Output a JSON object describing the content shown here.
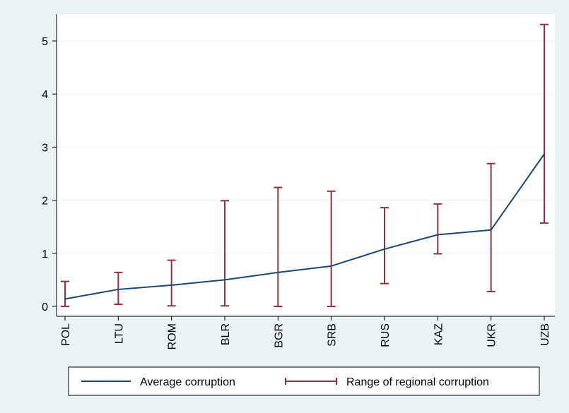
{
  "chart_data": {
    "type": "line",
    "categories": [
      "POL",
      "LTU",
      "ROM",
      "BLR",
      "BGR",
      "SRB",
      "RUS",
      "KAZ",
      "UKR",
      "UZB"
    ],
    "series": [
      {
        "name": "Average corruption",
        "kind": "line",
        "values": [
          0.14,
          0.32,
          0.4,
          0.5,
          0.64,
          0.76,
          1.08,
          1.35,
          1.44,
          2.87
        ]
      },
      {
        "name": "Range of regional corruption",
        "kind": "range",
        "low": [
          0.0,
          0.04,
          0.01,
          0.01,
          0.0,
          0.0,
          0.43,
          0.99,
          0.28,
          1.57
        ],
        "high": [
          0.47,
          0.64,
          0.87,
          1.99,
          2.24,
          2.17,
          1.86,
          1.93,
          2.69,
          5.31
        ]
      }
    ],
    "yticks": [
      0,
      1,
      2,
      3,
      4,
      5
    ],
    "ylim": [
      -0.2,
      5.6
    ],
    "grid": true,
    "legend_position": "bottom",
    "colors": {
      "line": "#1a476f",
      "range": "#90353b",
      "plot_bg": "#ffffff",
      "outer_bg": "#eaf2f3",
      "grid": "#eaf2f3"
    }
  }
}
